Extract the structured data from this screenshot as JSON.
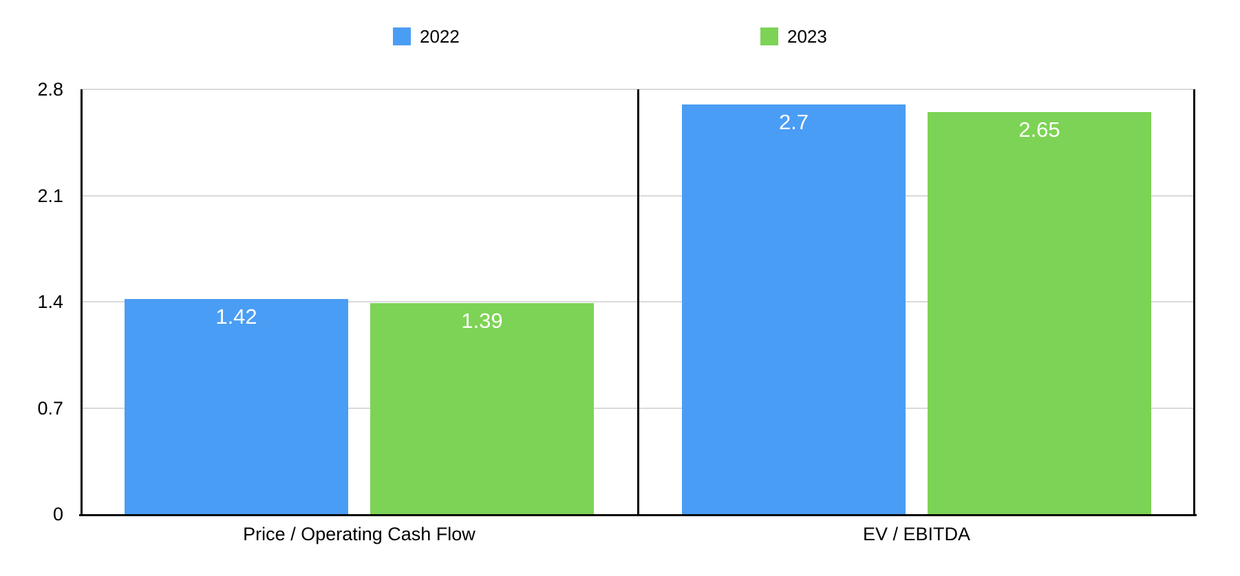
{
  "chart_data": {
    "type": "bar",
    "categories": [
      "Price / Operating Cash Flow",
      "EV / EBITDA"
    ],
    "series": [
      {
        "name": "2022",
        "color": "#4A9DF4",
        "values": [
          1.42,
          2.7
        ],
        "value_labels": [
          "1.42",
          "2.7"
        ]
      },
      {
        "name": "2023",
        "color": "#7DD355",
        "values": [
          1.39,
          2.65
        ],
        "value_labels": [
          "1.39",
          "2.65"
        ]
      }
    ],
    "title": "",
    "xlabel": "",
    "ylabel": "",
    "ylim": [
      0,
      2.8
    ],
    "yticks": [
      0,
      0.7,
      1.4,
      2.1,
      2.8
    ],
    "ytick_labels": [
      "0",
      "0.7",
      "1.4",
      "2.1",
      "2.8"
    ],
    "grid": true,
    "legend_position": "top",
    "value_label_color": "#ffffff"
  },
  "colors": {
    "series_2022": "#4A9DF4",
    "series_2023": "#7DD355",
    "gridline": "#d9d9d9",
    "axis_frame": "#000000",
    "background": "#ffffff",
    "text": "#000000"
  }
}
